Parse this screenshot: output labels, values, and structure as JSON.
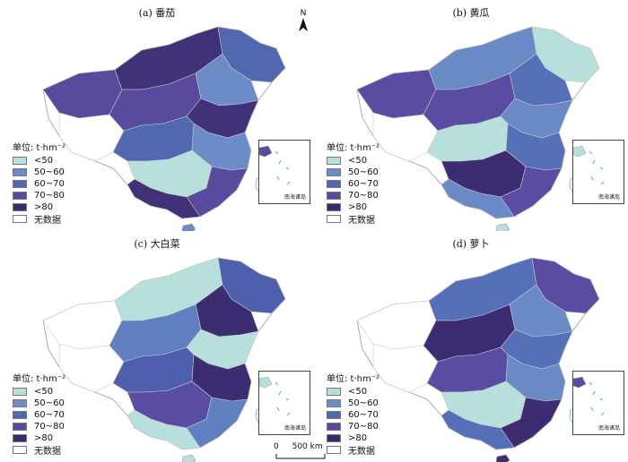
{
  "panels": [
    {
      "title": "(a) 番茄",
      "palette": [
        "#5a4a9e",
        "#413178",
        "#5168b0",
        "#6c8cc8",
        "#b7e0dc"
      ]
    },
    {
      "title": "(b) 黄瓜",
      "palette": [
        "#3d2c72",
        "#5b4ca3",
        "#6a8ac6",
        "#b7e0dc",
        "#5570b8"
      ]
    },
    {
      "title": "(c) 大白菜",
      "palette": [
        "#3d2c72",
        "#5b4ca3",
        "#5f7fc0",
        "#b7e0dc",
        "#4e5fae"
      ]
    },
    {
      "title": "(d) 萝卜",
      "palette": [
        "#5b4ca3",
        "#6a8ac6",
        "#b7e0dc",
        "#3d2c72",
        "#5570b8"
      ]
    }
  ],
  "legend": {
    "title": "单位: t·hm⁻²",
    "items": [
      {
        "label": "<50",
        "color": "#b7e0dc"
      },
      {
        "label": "50~60",
        "color": "#6c8cc8"
      },
      {
        "label": "60~70",
        "color": "#5168b0"
      },
      {
        "label": "70~80",
        "color": "#5a4a9e"
      },
      {
        "label": ">80",
        "color": "#3a2a6e"
      },
      {
        "label": "无数据",
        "color": "#ffffff"
      }
    ]
  },
  "inset_caption": "南海诸岛",
  "north_label": "N",
  "scale": {
    "zero": "0",
    "length": "500 km"
  }
}
